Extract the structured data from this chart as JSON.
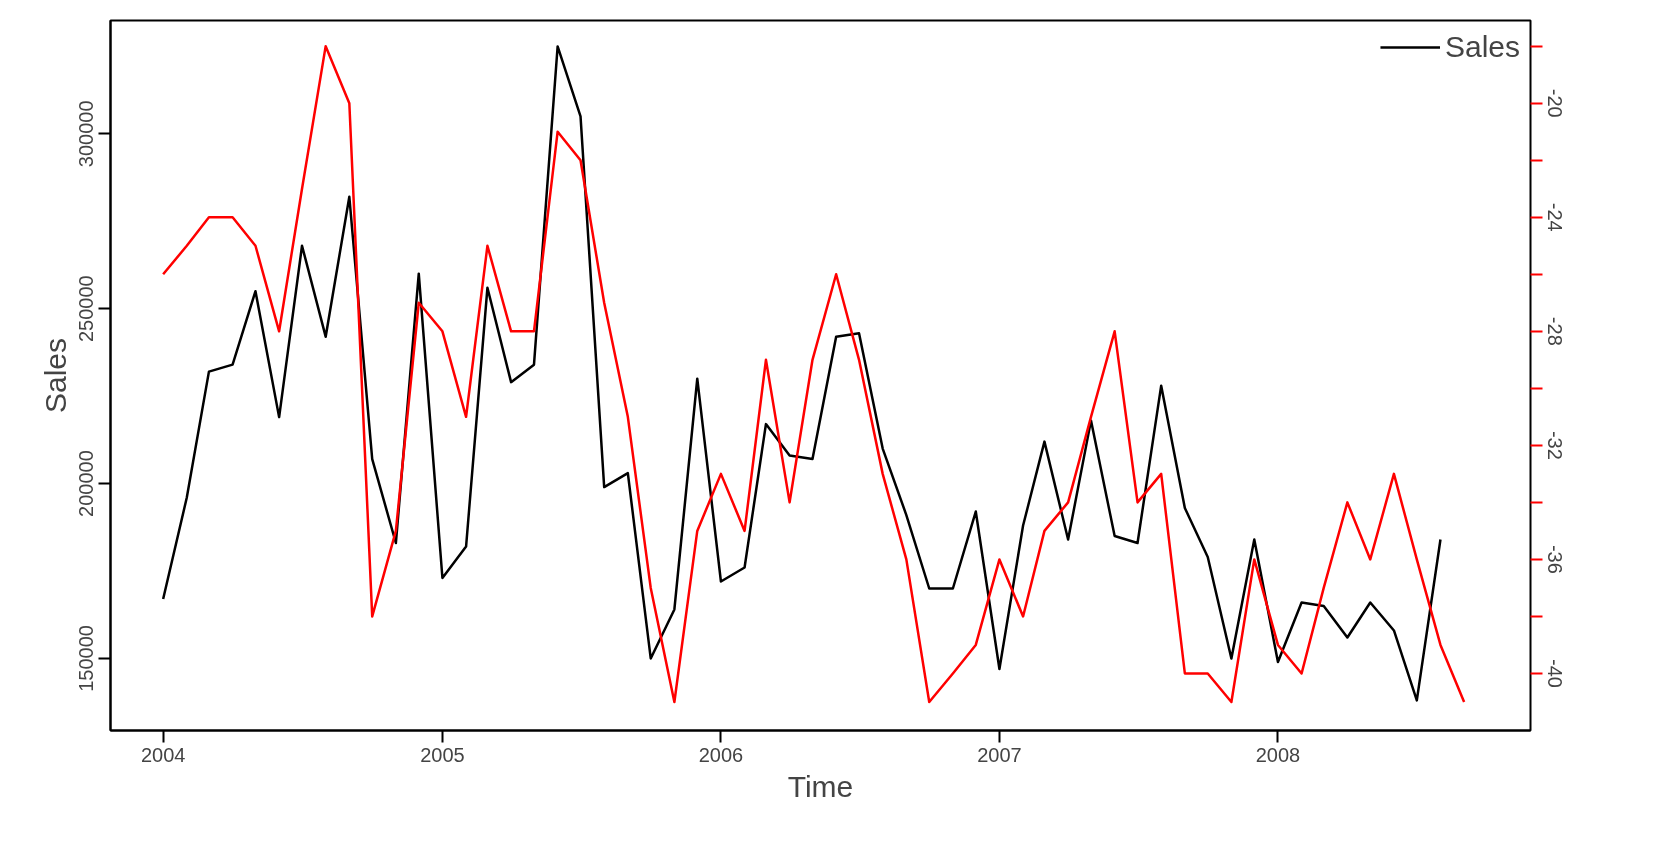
{
  "chart_data": {
    "type": "line",
    "xlabel": "Time",
    "ylabel": "Sales",
    "x": [
      "2004-01",
      "2004-02",
      "2004-03",
      "2004-04",
      "2004-05",
      "2004-06",
      "2004-07",
      "2004-08",
      "2004-09",
      "2004-10",
      "2004-11",
      "2004-12",
      "2005-01",
      "2005-02",
      "2005-03",
      "2005-04",
      "2005-05",
      "2005-06",
      "2005-07",
      "2005-08",
      "2005-09",
      "2005-10",
      "2005-11",
      "2005-12",
      "2006-01",
      "2006-02",
      "2006-03",
      "2006-04",
      "2006-05",
      "2006-06",
      "2006-07",
      "2006-08",
      "2006-09",
      "2006-10",
      "2006-11",
      "2006-12",
      "2007-01",
      "2007-02",
      "2007-03",
      "2007-04",
      "2007-05",
      "2007-06",
      "2007-07",
      "2007-08",
      "2007-09",
      "2007-10",
      "2007-11",
      "2007-12",
      "2008-01",
      "2008-02",
      "2008-03",
      "2008-04",
      "2008-05",
      "2008-06",
      "2008-07",
      "2008-08",
      "2008-09"
    ],
    "series": [
      {
        "name": "Sales",
        "color": "#000000",
        "values": [
          167000,
          196000,
          232000,
          234000,
          255000,
          219000,
          268000,
          242000,
          282000,
          207000,
          183000,
          260000,
          173000,
          182000,
          256000,
          229000,
          234000,
          325000,
          305000,
          199000,
          203000,
          150000,
          164000,
          230000,
          172000,
          176000,
          217000,
          208000,
          207000,
          242000,
          243000,
          210000,
          191000,
          170000,
          170000,
          192000,
          147000,
          188000,
          212000,
          184000,
          218000,
          185000,
          183000,
          228000,
          193000,
          179000,
          150000,
          184000,
          149000,
          166000,
          165000,
          156000,
          166000,
          158000,
          138000,
          184000,
          null
        ]
      },
      {
        "color": "#ff0000",
        "axis": "y2",
        "values": [
          -26,
          -25,
          -24,
          -24,
          -25,
          -28,
          -23,
          -18,
          -20,
          -38,
          -35,
          -27,
          -28,
          -31,
          -25,
          -28,
          -28,
          -21,
          -22,
          -27,
          -31,
          -37,
          -41,
          -35,
          -33,
          -35,
          -29,
          -34,
          -29,
          -26,
          -29,
          -33,
          -36,
          -41,
          -40,
          -39,
          -36,
          -38,
          -35,
          -34,
          -31,
          -28,
          -34,
          -33,
          -40,
          -40,
          -41,
          -36,
          -39,
          -40,
          -37,
          -34,
          -36,
          -33,
          -36,
          -39,
          -41
        ]
      }
    ],
    "xlim": [
      "2003-10-24",
      "2008-11-27"
    ],
    "xticks": [
      {
        "value": "2004-01",
        "label": "2004"
      },
      {
        "value": "2005-01",
        "label": "2005"
      },
      {
        "value": "2006-01",
        "label": "2006"
      },
      {
        "value": "2007-01",
        "label": "2007"
      },
      {
        "value": "2008-01",
        "label": "2008"
      }
    ],
    "ylim": [
      129400,
      332400
    ],
    "yticks": [
      150000,
      200000,
      250000,
      300000
    ],
    "y2lim": [
      -42,
      -17.1
    ],
    "y2ticks": [
      {
        "value": -18,
        "label": null
      },
      -20,
      {
        "value": -22,
        "label": null
      },
      -24,
      {
        "value": -26,
        "label": null
      },
      -28,
      {
        "value": -30,
        "label": null
      },
      -32,
      {
        "value": -34,
        "label": null
      },
      -36,
      {
        "value": -38,
        "label": null
      },
      -40
    ],
    "grid": false,
    "legend": "top right",
    "line_style": "solid",
    "marker": "none"
  }
}
